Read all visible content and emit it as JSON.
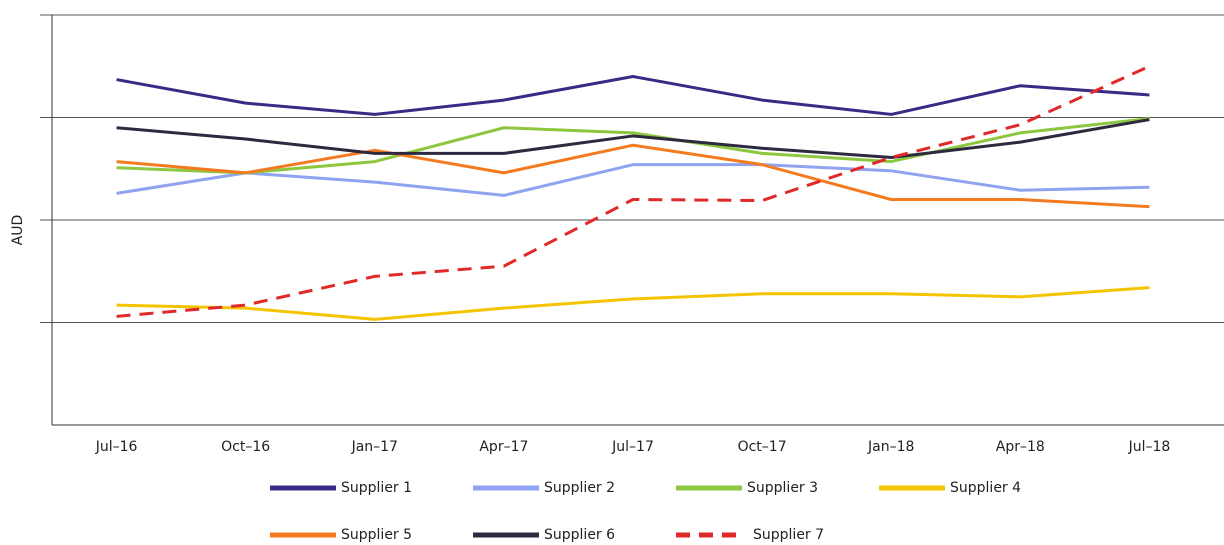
{
  "chart_data": {
    "type": "line",
    "y_label": "AUD",
    "categories": [
      "Jul–16",
      "Oct–16",
      "Jan–17",
      "Apr–17",
      "Jul–17",
      "Oct–17",
      "Jan–18",
      "Apr–18",
      "Jul–18"
    ],
    "ylim": [
      0,
      4
    ],
    "gridlines": [
      1,
      2,
      3,
      4
    ],
    "grid": true,
    "legend": "bottom",
    "series": [
      {
        "name": "Supplier 1",
        "color": "#3b2a85",
        "dash": false,
        "values": [
          3.37,
          3.14,
          3.03,
          3.17,
          3.4,
          3.17,
          3.03,
          3.31,
          3.22
        ]
      },
      {
        "name": "Supplier 2",
        "color": "#8fa3f0",
        "dash": false,
        "values": [
          2.26,
          2.46,
          2.37,
          2.24,
          2.54,
          2.54,
          2.48,
          2.29,
          2.32
        ]
      },
      {
        "name": "Supplier 3",
        "color": "#8dc63f",
        "dash": false,
        "values": [
          2.51,
          2.46,
          2.57,
          2.9,
          2.85,
          2.65,
          2.57,
          2.85,
          2.99
        ]
      },
      {
        "name": "Supplier 4",
        "color": "#f5c400",
        "dash": false,
        "values": [
          1.17,
          1.14,
          1.03,
          1.14,
          1.23,
          1.28,
          1.28,
          1.25,
          1.34
        ]
      },
      {
        "name": "Supplier 5",
        "color": "#f47a20",
        "dash": false,
        "values": [
          2.57,
          2.46,
          2.68,
          2.46,
          2.73,
          2.54,
          2.2,
          2.2,
          2.13
        ]
      },
      {
        "name": "Supplier 6",
        "color": "#2d2a40",
        "dash": false,
        "values": [
          2.9,
          2.79,
          2.65,
          2.65,
          2.82,
          2.7,
          2.61,
          2.76,
          2.98
        ]
      },
      {
        "name": "Supplier 7",
        "color": "#e02a2a",
        "dash": true,
        "values": [
          1.06,
          1.17,
          1.45,
          1.55,
          2.2,
          2.19,
          2.61,
          2.93,
          3.5
        ]
      }
    ]
  }
}
